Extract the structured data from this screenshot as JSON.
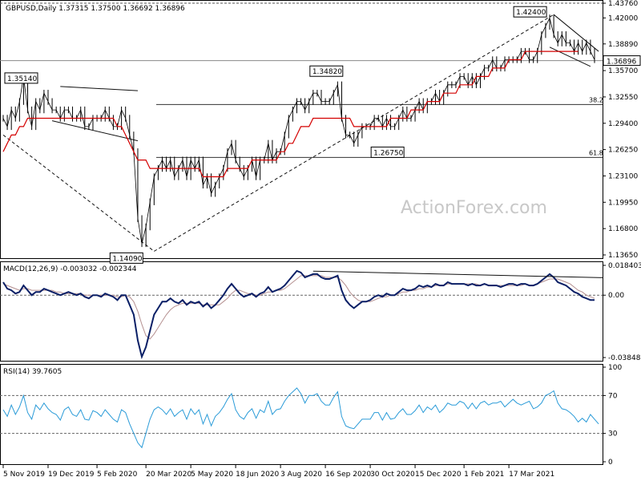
{
  "chart_data": {
    "type": "line",
    "title": "GBPUSD,Daily  1.37315 1.37500 1.36692 1.36896",
    "watermark": "ActionForex.com",
    "price_panel": {
      "ylim": [
        1.1365,
        1.4376
      ],
      "y_ticks": [
        "1.43760",
        "1.42000",
        "1.38890",
        "1.35700",
        "1.32550",
        "1.29400",
        "1.26250",
        "1.23100",
        "1.19950",
        "1.16800",
        "1.13650"
      ],
      "current_price_label": "1.36896",
      "current_price": 1.36896,
      "annotations": [
        {
          "text": "1.35140",
          "x": 10,
          "y": 1.3514
        },
        {
          "text": "1.34820",
          "x": 76,
          "y": 1.3482
        },
        {
          "text": "1.42400",
          "x": 135,
          "y": 1.424
        },
        {
          "text": "1.26750",
          "x": 91,
          "y": 1.2675
        },
        {
          "text": "1.14090",
          "x": 37,
          "y": 1.1409
        }
      ],
      "fib_levels": [
        {
          "label": "38.2",
          "y": 1.3164
        },
        {
          "label": "61.8",
          "y": 1.2531
        }
      ],
      "series": [
        {
          "name": "price",
          "color": "#000000",
          "values": [
            1.3,
            1.29,
            1.31,
            1.3,
            1.32,
            1.35,
            1.31,
            1.29,
            1.32,
            1.31,
            1.33,
            1.32,
            1.31,
            1.31,
            1.3,
            1.31,
            1.31,
            1.3,
            1.3,
            1.31,
            1.29,
            1.29,
            1.3,
            1.3,
            1.3,
            1.31,
            1.3,
            1.29,
            1.29,
            1.31,
            1.3,
            1.28,
            1.26,
            1.18,
            1.15,
            1.17,
            1.2,
            1.23,
            1.24,
            1.25,
            1.24,
            1.25,
            1.23,
            1.24,
            1.25,
            1.23,
            1.25,
            1.24,
            1.25,
            1.22,
            1.23,
            1.21,
            1.22,
            1.23,
            1.24,
            1.26,
            1.27,
            1.25,
            1.24,
            1.23,
            1.24,
            1.25,
            1.23,
            1.25,
            1.25,
            1.27,
            1.25,
            1.26,
            1.26,
            1.28,
            1.3,
            1.31,
            1.32,
            1.32,
            1.31,
            1.32,
            1.33,
            1.33,
            1.32,
            1.32,
            1.32,
            1.33,
            1.34,
            1.3,
            1.28,
            1.28,
            1.27,
            1.28,
            1.29,
            1.29,
            1.29,
            1.3,
            1.3,
            1.29,
            1.3,
            1.29,
            1.29,
            1.3,
            1.31,
            1.3,
            1.3,
            1.31,
            1.32,
            1.31,
            1.32,
            1.32,
            1.33,
            1.32,
            1.33,
            1.34,
            1.34,
            1.34,
            1.35,
            1.35,
            1.34,
            1.35,
            1.34,
            1.35,
            1.36,
            1.36,
            1.37,
            1.36,
            1.36,
            1.37,
            1.37,
            1.37,
            1.37,
            1.38,
            1.38,
            1.37,
            1.37,
            1.38,
            1.4,
            1.41,
            1.42,
            1.4,
            1.39,
            1.4,
            1.39,
            1.39,
            1.38,
            1.39,
            1.38,
            1.39,
            1.38,
            1.37
          ]
        },
        {
          "name": "ma",
          "color": "#d40000",
          "values": [
            1.26,
            1.27,
            1.28,
            1.28,
            1.29,
            1.29,
            1.3,
            1.3,
            1.3,
            1.3,
            1.3,
            1.3,
            1.3,
            1.3,
            1.3,
            1.3,
            1.3,
            1.3,
            1.3,
            1.3,
            1.3,
            1.3,
            1.3,
            1.3,
            1.3,
            1.3,
            1.3,
            1.3,
            1.29,
            1.29,
            1.28,
            1.27,
            1.26,
            1.25,
            1.25,
            1.25,
            1.24,
            1.24,
            1.24,
            1.24,
            1.24,
            1.24,
            1.24,
            1.24,
            1.24,
            1.24,
            1.24,
            1.24,
            1.24,
            1.23,
            1.23,
            1.23,
            1.23,
            1.23,
            1.23,
            1.24,
            1.24,
            1.24,
            1.24,
            1.24,
            1.24,
            1.25,
            1.25,
            1.25,
            1.25,
            1.25,
            1.25,
            1.25,
            1.26,
            1.26,
            1.27,
            1.27,
            1.28,
            1.29,
            1.29,
            1.29,
            1.3,
            1.3,
            1.3,
            1.3,
            1.3,
            1.3,
            1.3,
            1.3,
            1.3,
            1.3,
            1.29,
            1.29,
            1.29,
            1.29,
            1.29,
            1.29,
            1.29,
            1.29,
            1.29,
            1.3,
            1.3,
            1.3,
            1.3,
            1.3,
            1.31,
            1.31,
            1.31,
            1.31,
            1.32,
            1.32,
            1.32,
            1.32,
            1.33,
            1.33,
            1.33,
            1.33,
            1.34,
            1.34,
            1.34,
            1.34,
            1.35,
            1.35,
            1.35,
            1.35,
            1.36,
            1.36,
            1.36,
            1.36,
            1.37,
            1.37,
            1.37,
            1.37,
            1.38,
            1.38,
            1.38,
            1.38,
            1.38,
            1.38,
            1.38,
            1.38,
            1.38,
            1.38,
            1.38,
            1.38,
            1.38,
            1.38
          ]
        }
      ],
      "trendlines": [
        {
          "from": [
            0,
            1.28
          ],
          "to": [
            37,
            1.1409
          ],
          "style": "dashed"
        },
        {
          "from": [
            37,
            1.1409
          ],
          "to": [
            135,
            1.424
          ],
          "style": "dashed"
        },
        {
          "from": [
            14,
            1.338
          ],
          "to": [
            33,
            1.333
          ],
          "style": "solid"
        },
        {
          "from": [
            12,
            1.297
          ],
          "to": [
            33,
            1.273
          ],
          "style": "solid"
        },
        {
          "from": [
            135,
            1.424
          ],
          "to": [
            146,
            1.38
          ],
          "style": "solid"
        },
        {
          "from": [
            134,
            1.385
          ],
          "to": [
            144,
            1.362
          ],
          "style": "solid"
        }
      ]
    },
    "macd_panel": {
      "label": "MACD(12,26,9) -0.003032 -0.002344",
      "ylim": [
        -0.038483,
        0.018403
      ],
      "y_ticks": [
        "0.018403",
        "0.00",
        "-0.038483"
      ],
      "macd": [
        0.008,
        0.004,
        0.003,
        0.001,
        0.002,
        0.006,
        0.003,
        0.0,
        0.002,
        0.002,
        0.004,
        0.003,
        0.002,
        0.001,
        0.0,
        0.001,
        0.002,
        0.001,
        0.0,
        0.001,
        -0.001,
        -0.002,
        0.0,
        0.0,
        -0.001,
        0.001,
        0.0,
        -0.001,
        -0.003,
        0.0,
        0.0,
        -0.006,
        -0.012,
        -0.028,
        -0.038,
        -0.032,
        -0.022,
        -0.012,
        -0.008,
        -0.004,
        -0.004,
        -0.002,
        -0.004,
        -0.005,
        -0.003,
        -0.006,
        -0.004,
        -0.005,
        -0.004,
        -0.007,
        -0.005,
        -0.008,
        -0.006,
        -0.003,
        0.0,
        0.004,
        0.007,
        0.004,
        0.001,
        -0.001,
        0.0,
        0.001,
        -0.001,
        0.001,
        0.002,
        0.005,
        0.002,
        0.003,
        0.004,
        0.006,
        0.009,
        0.012,
        0.015,
        0.014,
        0.011,
        0.012,
        0.013,
        0.013,
        0.011,
        0.01,
        0.01,
        0.011,
        0.012,
        0.003,
        -0.003,
        -0.006,
        -0.008,
        -0.006,
        -0.004,
        -0.004,
        -0.003,
        -0.001,
        0.0,
        -0.001,
        0.001,
        0.0,
        0.0,
        0.002,
        0.004,
        0.003,
        0.003,
        0.004,
        0.006,
        0.005,
        0.006,
        0.005,
        0.007,
        0.006,
        0.006,
        0.008,
        0.007,
        0.007,
        0.007,
        0.007,
        0.006,
        0.007,
        0.006,
        0.006,
        0.007,
        0.006,
        0.006,
        0.006,
        0.005,
        0.006,
        0.007,
        0.007,
        0.006,
        0.007,
        0.007,
        0.006,
        0.006,
        0.007,
        0.009,
        0.011,
        0.013,
        0.011,
        0.008,
        0.007,
        0.006,
        0.004,
        0.002,
        0.001,
        -0.001,
        -0.002,
        -0.003,
        -0.003
      ],
      "signal": [
        0.007,
        0.006,
        0.005,
        0.004,
        0.003,
        0.004,
        0.004,
        0.003,
        0.003,
        0.003,
        0.003,
        0.003,
        0.003,
        0.002,
        0.002,
        0.001,
        0.001,
        0.001,
        0.001,
        0.001,
        0.0,
        0.0,
        0.0,
        0.0,
        0.0,
        0.0,
        0.0,
        0.0,
        -0.001,
        -0.001,
        0.0,
        -0.001,
        -0.004,
        -0.01,
        -0.018,
        -0.025,
        -0.027,
        -0.024,
        -0.02,
        -0.016,
        -0.012,
        -0.009,
        -0.007,
        -0.006,
        -0.005,
        -0.005,
        -0.005,
        -0.005,
        -0.005,
        -0.006,
        -0.006,
        -0.006,
        -0.006,
        -0.006,
        -0.004,
        -0.002,
        0.001,
        0.003,
        0.003,
        0.002,
        0.001,
        0.001,
        0.0,
        0.0,
        0.001,
        0.002,
        0.002,
        0.003,
        0.003,
        0.004,
        0.006,
        0.008,
        0.01,
        0.012,
        0.012,
        0.012,
        0.012,
        0.012,
        0.012,
        0.011,
        0.011,
        0.011,
        0.011,
        0.009,
        0.006,
        0.002,
        -0.001,
        -0.003,
        -0.004,
        -0.004,
        -0.004,
        -0.003,
        -0.002,
        -0.001,
        -0.001,
        0.0,
        0.0,
        0.001,
        0.002,
        0.002,
        0.003,
        0.003,
        0.004,
        0.004,
        0.005,
        0.005,
        0.006,
        0.006,
        0.006,
        0.007,
        0.007,
        0.007,
        0.007,
        0.007,
        0.007,
        0.007,
        0.007,
        0.006,
        0.007,
        0.006,
        0.006,
        0.006,
        0.006,
        0.006,
        0.006,
        0.006,
        0.006,
        0.006,
        0.007,
        0.006,
        0.006,
        0.007,
        0.008,
        0.009,
        0.01,
        0.01,
        0.01,
        0.009,
        0.008,
        0.007,
        0.005,
        0.003,
        0.002,
        0.0,
        -0.001,
        -0.002
      ],
      "trendline": {
        "from": [
          76,
          0.0148
        ],
        "to": [
          147,
          0.0108
        ]
      }
    },
    "rsi_panel": {
      "label": "RSI(14) 39.7605",
      "ylim": [
        0,
        100
      ],
      "y_ticks": [
        "100",
        "70",
        "30",
        "0"
      ],
      "levels": [
        70,
        30
      ],
      "values": [
        55,
        48,
        60,
        50,
        58,
        70,
        52,
        45,
        60,
        55,
        62,
        56,
        52,
        50,
        44,
        55,
        58,
        50,
        48,
        55,
        45,
        44,
        54,
        52,
        48,
        55,
        50,
        45,
        42,
        55,
        52,
        40,
        30,
        20,
        15,
        30,
        45,
        55,
        58,
        55,
        50,
        56,
        48,
        52,
        55,
        45,
        56,
        50,
        55,
        40,
        50,
        38,
        48,
        52,
        58,
        66,
        72,
        55,
        48,
        45,
        52,
        56,
        46,
        55,
        52,
        64,
        50,
        55,
        56,
        64,
        70,
        74,
        78,
        72,
        62,
        70,
        70,
        72,
        64,
        60,
        60,
        68,
        74,
        48,
        38,
        36,
        35,
        40,
        45,
        45,
        45,
        52,
        52,
        44,
        52,
        45,
        46,
        52,
        56,
        50,
        50,
        54,
        60,
        52,
        58,
        55,
        60,
        52,
        56,
        62,
        60,
        60,
        64,
        62,
        56,
        62,
        56,
        62,
        64,
        60,
        62,
        62,
        64,
        58,
        62,
        66,
        62,
        60,
        62,
        64,
        56,
        58,
        62,
        70,
        72,
        75,
        62,
        56,
        55,
        52,
        48,
        42,
        46,
        42,
        50,
        45,
        40
      ]
    },
    "x_ticks": [
      {
        "label": "5 Nov 2019",
        "i": 0
      },
      {
        "label": "19 Dec 2019",
        "i": 11
      },
      {
        "label": "5 Feb 2020",
        "i": 23
      },
      {
        "label": "20 Mar 2020",
        "i": 35
      },
      {
        "label": "5 May 2020",
        "i": 46
      },
      {
        "label": "18 Jun 2020",
        "i": 57
      },
      {
        "label": "3 Aug 2020",
        "i": 68
      },
      {
        "label": "16 Sep 2020",
        "i": 79
      },
      {
        "label": "30 Oct 2020",
        "i": 90
      },
      {
        "label": "15 Dec 2020",
        "i": 101
      },
      {
        "label": "1 Feb 2021",
        "i": 113
      },
      {
        "label": "17 Mar 2021",
        "i": 124
      }
    ]
  }
}
